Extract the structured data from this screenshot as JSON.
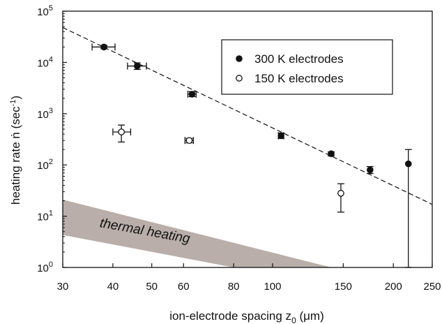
{
  "chart_data": {
    "type": "scatter",
    "x_scale": "log",
    "y_scale": "log",
    "xlim": [
      30,
      250
    ],
    "ylim": [
      1,
      100000
    ],
    "x_ticks": [
      30,
      40,
      50,
      60,
      80,
      100,
      150,
      200,
      250
    ],
    "y_ticks": [
      1,
      10,
      100,
      1000,
      10000,
      100000
    ],
    "y_tick_labels": [
      {
        "base": "10",
        "exp": "0"
      },
      {
        "base": "10",
        "exp": "1"
      },
      {
        "base": "10",
        "exp": "2"
      },
      {
        "base": "10",
        "exp": "3"
      },
      {
        "base": "10",
        "exp": "4"
      },
      {
        "base": "10",
        "exp": "5"
      }
    ],
    "xlabel": {
      "main": "ion-electrode spacing z",
      "sub": "0",
      "unit": " (μm)"
    },
    "ylabel": {
      "main": "heating rate ",
      "symbol": "ṅ",
      "unit_pre": " (sec",
      "unit_sup": "-1",
      "unit_post": ")"
    },
    "grid": false,
    "legend_position": "top-right",
    "series": [
      {
        "name": "300 K electrodes",
        "marker": "filled-circle",
        "color": "#111111",
        "points": [
          {
            "x": 38,
            "y": 20000,
            "xerr": [
              35.5,
              40.5
            ],
            "yerr": [
              18500,
              21500
            ]
          },
          {
            "x": 46,
            "y": 8500,
            "xerr": [
              43.5,
              48.5
            ],
            "yerr": [
              7300,
              9800
            ]
          },
          {
            "x": 63,
            "y": 2400,
            "xerr": [
              61.5,
              64.5
            ],
            "yerr": [
              2150,
              2700
            ]
          },
          {
            "x": 105,
            "y": 370,
            "xerr": [
              103.5,
              106.5
            ],
            "yerr": [
              330,
              420
            ]
          },
          {
            "x": 140,
            "y": 165,
            "xerr": [
              138.5,
              141.5
            ],
            "yerr": [
              150,
              180
            ]
          },
          {
            "x": 175,
            "y": 80,
            "xerr": [
              173.5,
              176.5
            ],
            "yerr": [
              68,
              93
            ]
          },
          {
            "x": 218,
            "y": 105,
            "xerr": [
              216.5,
              219.5
            ],
            "yerr": [
              1,
              200
            ]
          }
        ]
      },
      {
        "name": "150 K electrodes",
        "marker": "open-circle",
        "color": "#111111",
        "points": [
          {
            "x": 42,
            "y": 440,
            "xerr": [
              40,
              44.3
            ],
            "yerr": [
              280,
              600
            ]
          },
          {
            "x": 62,
            "y": 300,
            "xerr": [
              60.5,
              63.5
            ],
            "yerr": [
              270,
              330
            ]
          },
          {
            "x": 148,
            "y": 28,
            "xerr": [
              146.5,
              149.5
            ],
            "yerr": [
              12,
              43
            ]
          }
        ]
      }
    ],
    "fit_line": {
      "style": "dashed",
      "from": {
        "x": 30,
        "y": 48000
      },
      "to": {
        "x": 250,
        "y": 17
      }
    },
    "thermal_band": {
      "label": "thermal heating",
      "color": "#b9aea9",
      "upper": [
        {
          "x": 30,
          "y": 21
        },
        {
          "x": 140,
          "y": 1
        }
      ],
      "lower": [
        {
          "x": 30,
          "y": 4.3
        },
        {
          "x": 80,
          "y": 1
        }
      ]
    }
  }
}
